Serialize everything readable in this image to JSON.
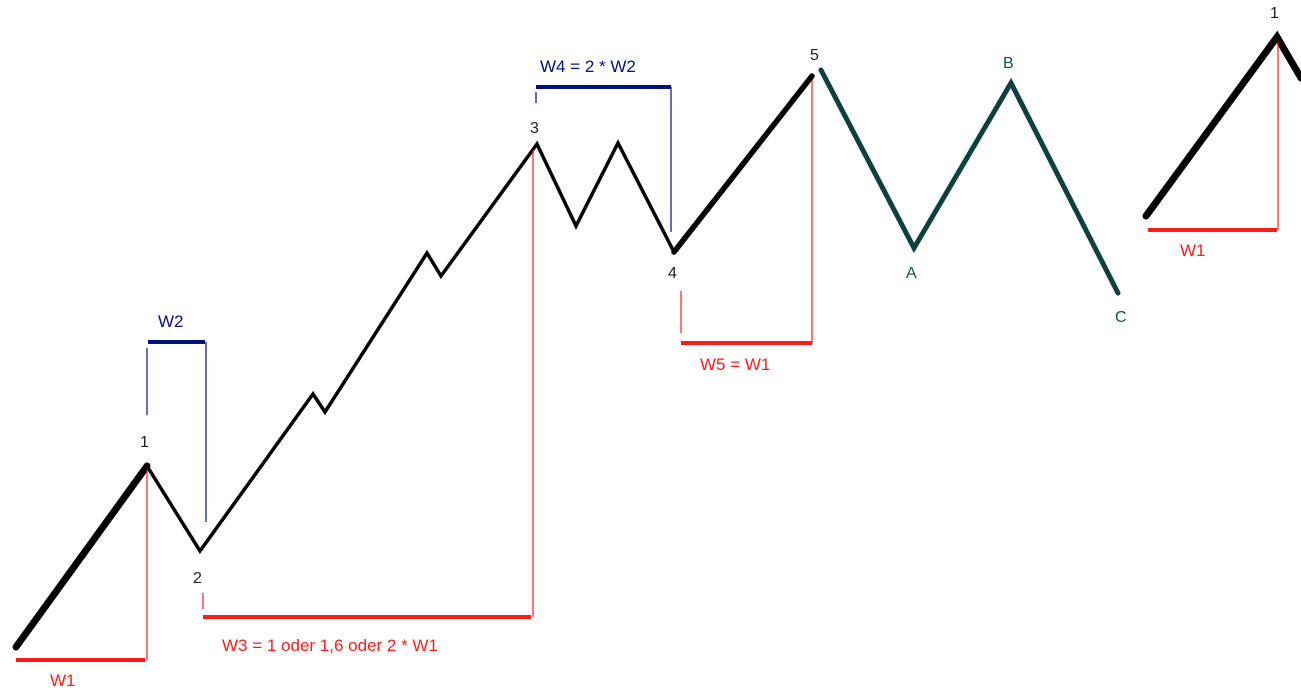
{
  "colors": {
    "impulse": "#000000",
    "correction": "#0f4040",
    "measure_red": "#ff1a1a",
    "measure_blue": "#001080",
    "label_dark": "#222222",
    "label_teal": "#1a4d4d"
  },
  "wave_labels": {
    "p1": "1",
    "p2": "2",
    "p3": "3",
    "p4": "4",
    "p5": "5",
    "pa": "A",
    "pb": "B",
    "pc": "C",
    "next1": "1"
  },
  "measures": {
    "w1": "W1",
    "w2": "W2",
    "w3": "W3 = 1 oder 1,6 oder 2 * W1",
    "w4": "W4 = 2 * W2",
    "w5": "W5 = W1",
    "w1_next": "W1"
  }
}
